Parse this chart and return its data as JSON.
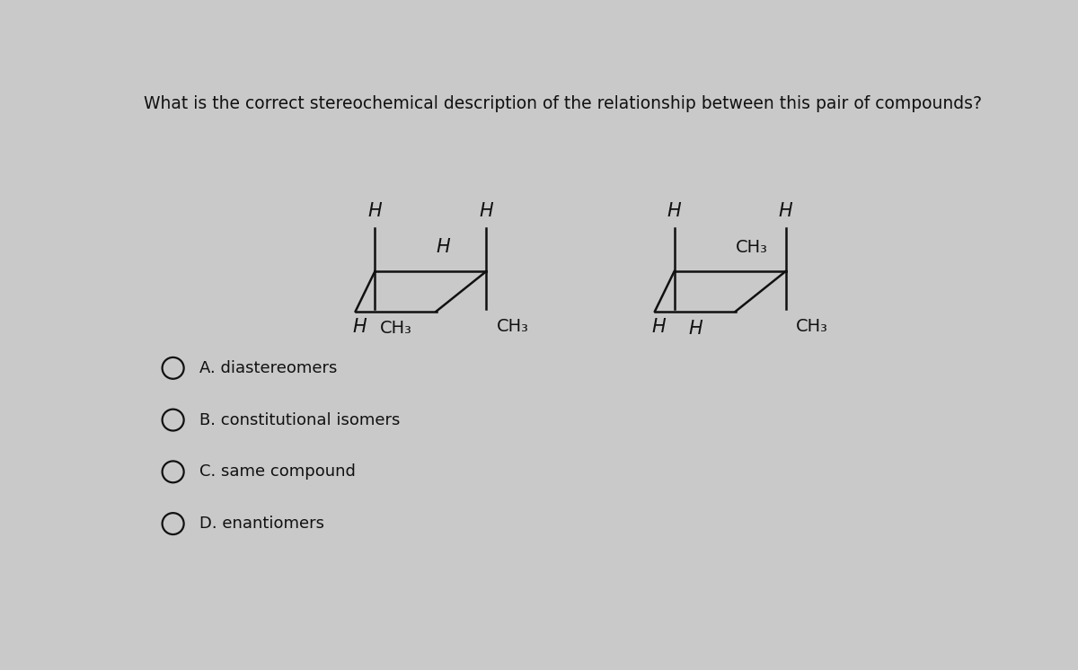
{
  "background_color": "#c9c9c9",
  "title": "What is the correct stereochemical description of the relationship between this pair of compounds?",
  "title_fontsize": 13.5,
  "title_color": "#111111",
  "options": [
    "A. diastereomers",
    "B. constitutional isomers",
    "C. same compound",
    "D. enantiomers"
  ],
  "option_fontsize": 13,
  "line_color": "#111111",
  "text_color": "#111111",
  "lw": 1.8,
  "label_fs": 15,
  "sub_fs": 14
}
